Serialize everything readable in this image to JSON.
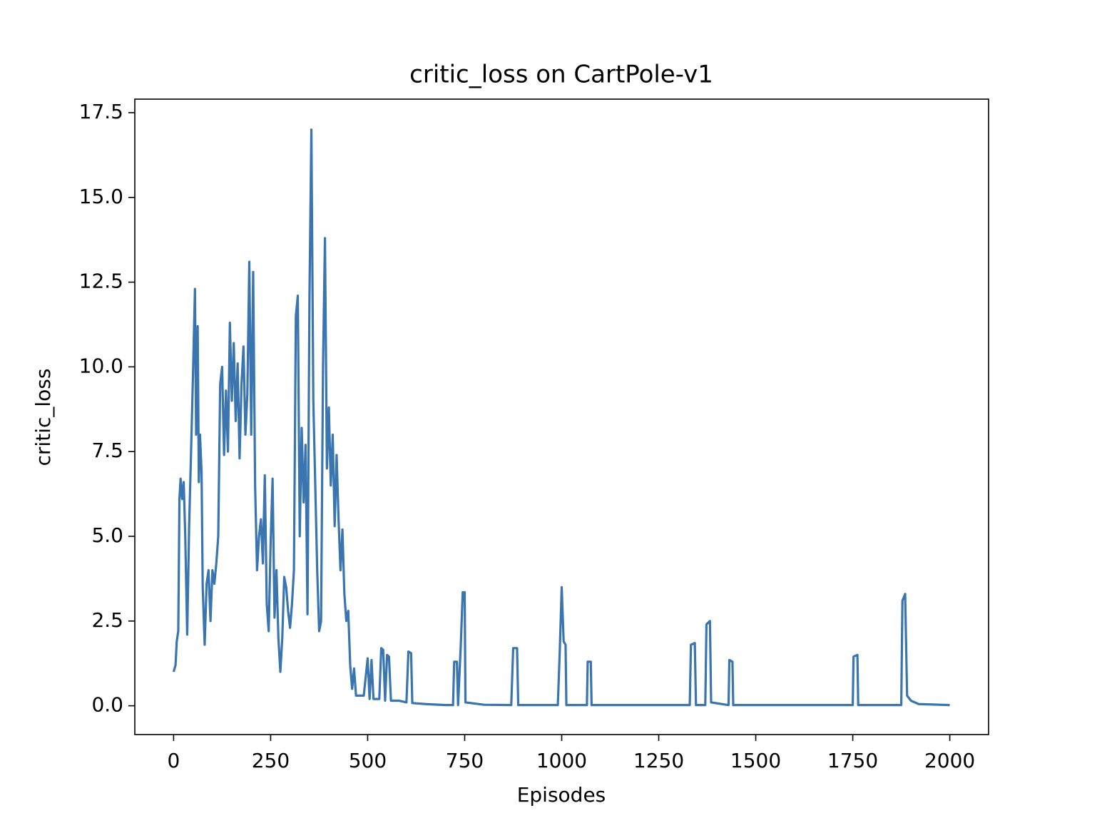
{
  "chart_data": {
    "type": "line",
    "title": "critic_loss on CartPole-v1",
    "x_label": "Episodes",
    "y_label": "critic_loss",
    "xlim": [
      -100,
      2100
    ],
    "ylim": [
      -0.85,
      17.9
    ],
    "xticks": [
      0,
      250,
      500,
      750,
      1000,
      1250,
      1500,
      1750,
      2000
    ],
    "yticks": [
      {
        "value": 0,
        "label": "0.0"
      },
      2.5,
      {
        "value": 5,
        "label": "5.0"
      },
      7.5,
      {
        "value": 10,
        "label": "10.0"
      },
      12.5,
      {
        "value": 15,
        "label": "15.0"
      },
      17.5
    ],
    "series": [
      {
        "color": "#3a75b0",
        "x": [
          0,
          5,
          8,
          12,
          15,
          18,
          22,
          26,
          30,
          35,
          40,
          45,
          50,
          55,
          58,
          62,
          65,
          68,
          72,
          75,
          80,
          85,
          90,
          95,
          100,
          105,
          110,
          115,
          120,
          125,
          130,
          135,
          140,
          145,
          150,
          155,
          160,
          165,
          170,
          175,
          180,
          185,
          190,
          195,
          200,
          205,
          210,
          215,
          220,
          225,
          230,
          235,
          240,
          245,
          250,
          255,
          260,
          265,
          270,
          275,
          280,
          285,
          290,
          295,
          300,
          305,
          310,
          315,
          320,
          325,
          330,
          335,
          340,
          345,
          350,
          355,
          360,
          365,
          370,
          375,
          380,
          385,
          390,
          395,
          400,
          405,
          410,
          415,
          420,
          425,
          430,
          435,
          440,
          445,
          450,
          455,
          460,
          465,
          470,
          480,
          490,
          500,
          505,
          510,
          515,
          530,
          535,
          540,
          545,
          550,
          555,
          560,
          580,
          600,
          605,
          612,
          615,
          650,
          700,
          720,
          723,
          730,
          733,
          740,
          745,
          750,
          752,
          800,
          870,
          875,
          885,
          888,
          990,
          995,
          1000,
          1005,
          1010,
          1012,
          1065,
          1067,
          1075,
          1077,
          1330,
          1333,
          1343,
          1346,
          1370,
          1373,
          1382,
          1385,
          1430,
          1432,
          1440,
          1442,
          1750,
          1752,
          1762,
          1764,
          1875,
          1878,
          1885,
          1890,
          1900,
          1920,
          2000
        ],
        "values": [
          1.0,
          1.2,
          1.9,
          2.2,
          6.1,
          6.7,
          6.1,
          6.6,
          5.0,
          2.1,
          5.3,
          7.5,
          9.8,
          12.3,
          8.0,
          11.2,
          6.6,
          8.0,
          6.9,
          3.5,
          1.8,
          3.6,
          4.0,
          2.5,
          4.0,
          3.6,
          4.2,
          5.0,
          9.5,
          10.0,
          7.4,
          9.3,
          7.5,
          11.3,
          9.0,
          10.7,
          8.4,
          10.1,
          7.3,
          9.5,
          10.6,
          8.0,
          9.2,
          13.1,
          8.0,
          12.8,
          6.5,
          4.0,
          5.0,
          5.5,
          4.2,
          6.8,
          3.0,
          2.2,
          4.8,
          6.7,
          2.6,
          4.0,
          2.0,
          1.0,
          2.0,
          3.8,
          3.5,
          2.8,
          2.3,
          3.0,
          4.0,
          11.5,
          12.1,
          5.0,
          8.2,
          6.0,
          7.7,
          2.7,
          12.0,
          17.0,
          9.0,
          6.5,
          4.0,
          2.2,
          2.5,
          10.0,
          13.8,
          7.0,
          8.8,
          6.5,
          8.0,
          5.3,
          7.4,
          5.5,
          4.0,
          5.2,
          3.3,
          2.5,
          2.8,
          1.2,
          0.5,
          1.1,
          0.3,
          0.3,
          0.3,
          1.4,
          0.2,
          1.35,
          0.2,
          0.2,
          1.7,
          1.65,
          0.15,
          1.5,
          1.45,
          0.15,
          0.15,
          0.1,
          1.6,
          1.55,
          0.08,
          0.05,
          0.02,
          0.02,
          1.3,
          1.3,
          0.02,
          1.8,
          3.35,
          3.35,
          0.1,
          0.03,
          0.02,
          1.7,
          1.7,
          0.02,
          0.02,
          1.6,
          3.5,
          1.9,
          1.8,
          0.02,
          0.02,
          1.3,
          1.3,
          0.02,
          0.02,
          1.8,
          1.85,
          0.02,
          0.02,
          2.4,
          2.5,
          0.1,
          0.02,
          1.35,
          1.3,
          0.02,
          0.02,
          1.45,
          1.5,
          0.02,
          0.02,
          3.1,
          3.3,
          0.3,
          0.15,
          0.05,
          0.02
        ]
      }
    ]
  }
}
